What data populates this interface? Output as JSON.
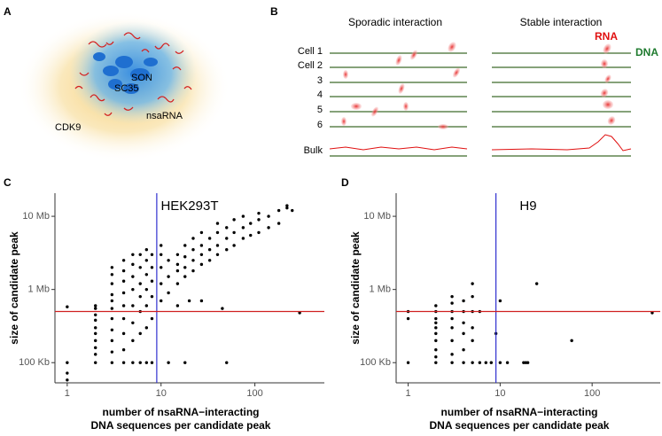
{
  "panel_a": {
    "letter": "A",
    "labels": [
      "SON",
      "SC35",
      "nsaRNA",
      "CDK9"
    ]
  },
  "panel_b": {
    "letter": "B",
    "left_title": "Sporadic interaction",
    "right_title": "Stable interaction",
    "rna": "RNA",
    "dna": "DNA",
    "rows": [
      "Cell 1",
      "Cell 2",
      "3",
      "4",
      "5",
      "6"
    ],
    "bulk": "Bulk"
  },
  "chart_data": [
    {
      "type": "scatter",
      "panel": "C",
      "title": "HEK293T",
      "xlabel": [
        "number of nsaRNA−interacting",
        "DNA sequences per candidate peak"
      ],
      "ylabel": "size of candidate peak",
      "log_x": true,
      "log_y": true,
      "color": "#000000",
      "xlim": [
        0.74,
        550
      ],
      "ylim": [
        53000,
        20700000
      ],
      "xticks": [
        1,
        10,
        100
      ],
      "yticks": [
        {
          "value": 100000,
          "label": "100 Kb"
        },
        {
          "value": 1000000,
          "label": "1 Mb"
        },
        {
          "value": 10000000,
          "label": "10 Mb"
        }
      ],
      "vline": 9,
      "vline_color": "#3030d0",
      "hline": 500000,
      "hline_color": "#d02020",
      "x": [
        1,
        1,
        1,
        1,
        2,
        2,
        2,
        2,
        2,
        2,
        2,
        2,
        2,
        2,
        3,
        3,
        3,
        3,
        3,
        3,
        3,
        3,
        3,
        3,
        3,
        4,
        4,
        4,
        4,
        4,
        4,
        4,
        4,
        4,
        5,
        5,
        5,
        5,
        5,
        5,
        5,
        5,
        6,
        6,
        6,
        6,
        6,
        6,
        6,
        7,
        7,
        7,
        7,
        7,
        7,
        7,
        8,
        8,
        8,
        8,
        8,
        8,
        10,
        10,
        10,
        10,
        10,
        12,
        12,
        12,
        12,
        15,
        15,
        15,
        15,
        15,
        18,
        18,
        18,
        18,
        18,
        20,
        22,
        22,
        22,
        22,
        27,
        27,
        27,
        27,
        27,
        33,
        33,
        33,
        40,
        40,
        40,
        40,
        45,
        50,
        50,
        50,
        50,
        60,
        60,
        60,
        75,
        75,
        75,
        90,
        90,
        110,
        110,
        110,
        140,
        140,
        180,
        180,
        220,
        220,
        250,
        300
      ],
      "values": [
        580000,
        100000,
        72000,
        58000,
        100000,
        130000,
        160000,
        200000,
        250000,
        300000,
        380000,
        450000,
        550000,
        600000,
        100000,
        140000,
        200000,
        280000,
        400000,
        550000,
        700000,
        850000,
        1200000,
        1600000,
        2000000,
        100000,
        150000,
        250000,
        400000,
        600000,
        900000,
        1300000,
        1800000,
        2500000,
        100000,
        200000,
        350000,
        600000,
        1000000,
        1500000,
        2200000,
        3000000,
        100000,
        250000,
        500000,
        800000,
        1200000,
        2000000,
        3000000,
        100000,
        300000,
        600000,
        1000000,
        1600000,
        2500000,
        3500000,
        100000,
        400000,
        800000,
        1300000,
        2000000,
        3000000,
        700000,
        1200000,
        2000000,
        3000000,
        4000000,
        100000,
        900000,
        1500000,
        2500000,
        600000,
        1200000,
        1800000,
        2200000,
        3000000,
        100000,
        1500000,
        2000000,
        2800000,
        4000000,
        700000,
        1800000,
        2500000,
        3500000,
        5000000,
        700000,
        2200000,
        3000000,
        4000000,
        6000000,
        2500000,
        3500000,
        5000000,
        3000000,
        4000000,
        6000000,
        8000000,
        550000,
        100000,
        3500000,
        5000000,
        7000000,
        4000000,
        6000000,
        9000000,
        5000000,
        7000000,
        10000000,
        5500000,
        8000000,
        6000000,
        9000000,
        11000000,
        7000000,
        10000000,
        8000000,
        12000000,
        13000000,
        14000000,
        12000000,
        480000
      ]
    },
    {
      "type": "scatter",
      "panel": "D",
      "title": "H9",
      "xlabel": [
        "number of nsaRNA−interacting",
        "DNA sequences per candidate peak"
      ],
      "ylabel": "size of candidate peak",
      "log_x": true,
      "log_y": true,
      "color": "#000000",
      "xlim": [
        0.74,
        550
      ],
      "ylim": [
        53000,
        20700000
      ],
      "xticks": [
        1,
        10,
        100
      ],
      "yticks": [
        {
          "value": 100000,
          "label": "100 Kb"
        },
        {
          "value": 1000000,
          "label": "1 Mb"
        },
        {
          "value": 10000000,
          "label": "10 Mb"
        }
      ],
      "vline": 9,
      "vline_color": "#3030d0",
      "hline": 500000,
      "hline_color": "#d02020",
      "x": [
        1,
        1,
        1,
        2,
        2,
        2,
        2,
        2,
        2,
        2,
        2,
        2,
        2,
        3,
        3,
        3,
        3,
        3,
        3,
        3,
        3,
        4,
        4,
        4,
        4,
        4,
        4,
        5,
        5,
        5,
        5,
        5,
        5,
        6,
        6,
        7,
        8,
        9,
        10,
        10,
        12,
        18,
        19,
        20,
        25,
        60,
        450
      ],
      "values": [
        100000,
        400000,
        500000,
        100000,
        120000,
        150000,
        200000,
        250000,
        300000,
        350000,
        400000,
        500000,
        600000,
        100000,
        130000,
        200000,
        300000,
        400000,
        500000,
        650000,
        800000,
        100000,
        150000,
        250000,
        350000,
        500000,
        700000,
        100000,
        200000,
        300000,
        500000,
        800000,
        1200000,
        100000,
        500000,
        100000,
        100000,
        250000,
        100000,
        700000,
        100000,
        100000,
        100000,
        100000,
        1200000,
        200000,
        480000
      ]
    }
  ]
}
